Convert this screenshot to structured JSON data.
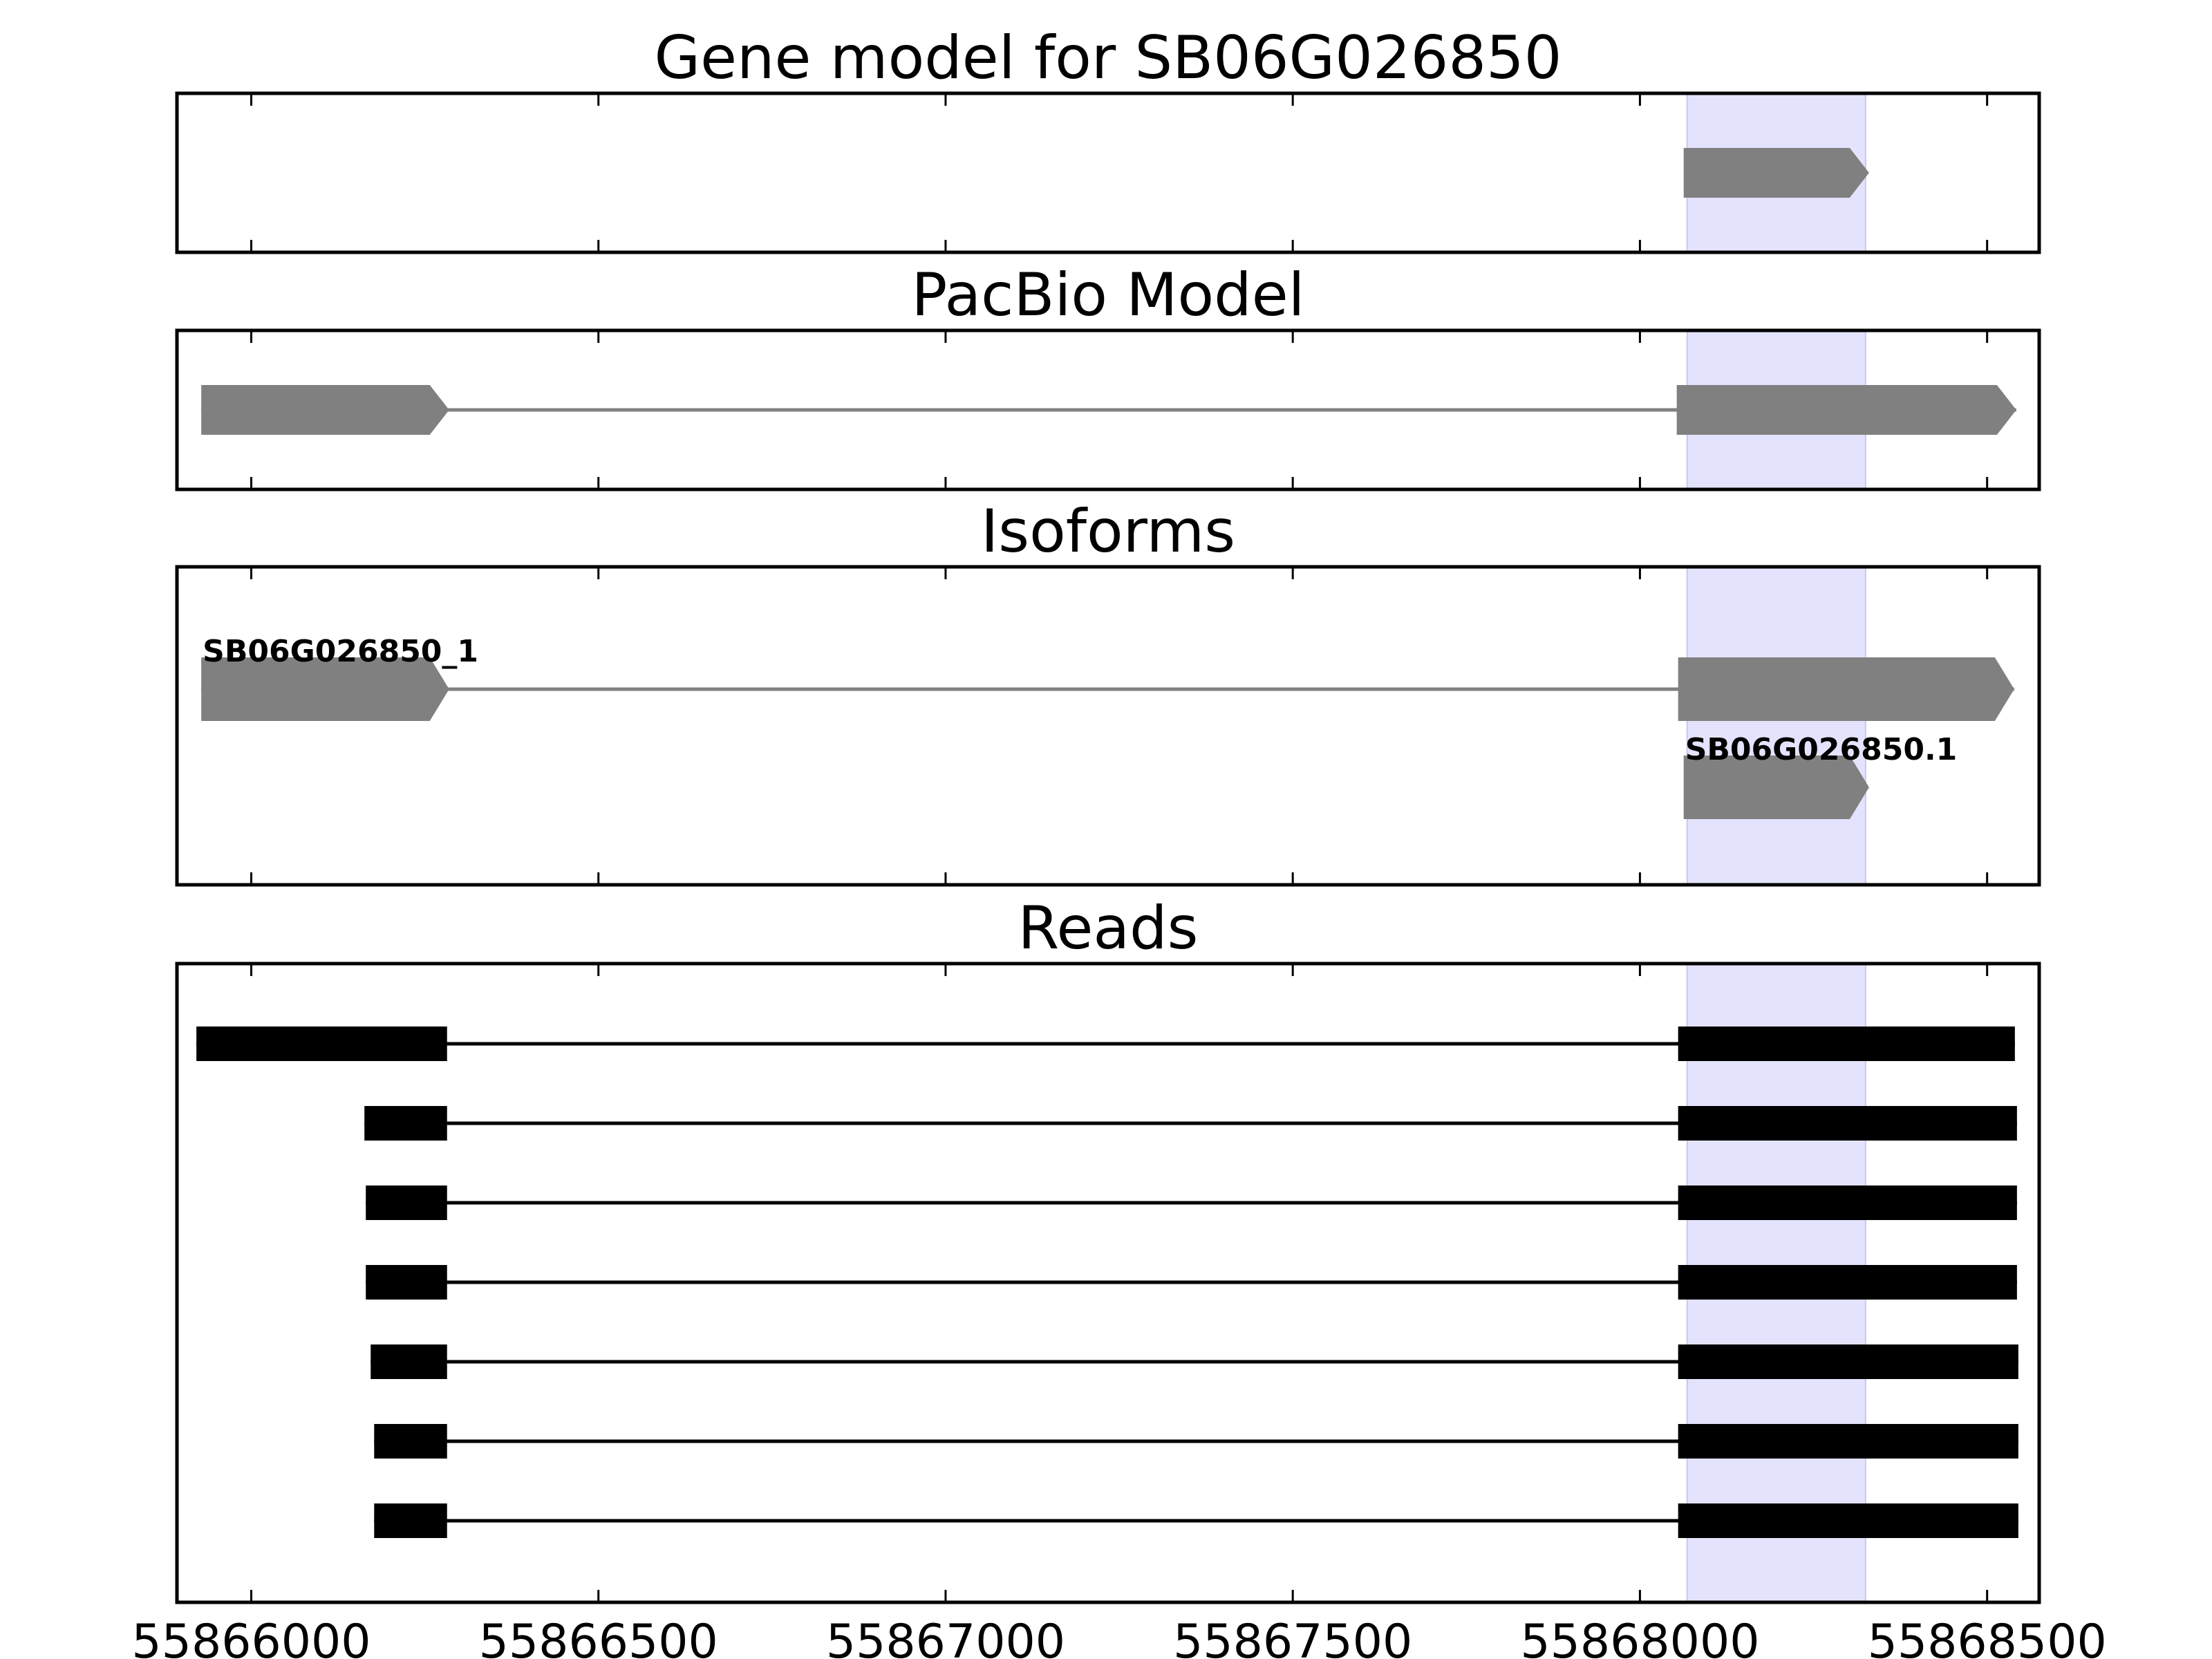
{
  "chart_data": {
    "type": "gene-track",
    "x_axis": {
      "xlim": [
        55865893,
        55868575
      ],
      "ticks": [
        55866000,
        55866500,
        55867000,
        55867500,
        55868000,
        55868500
      ],
      "tick_labels": [
        "55866000",
        "55866500",
        "55867000",
        "55867500",
        "55868000",
        "55868500"
      ]
    },
    "highlight": {
      "start": 55868068,
      "end": 55868325,
      "color": "#e3e3fd"
    },
    "colors": {
      "model": "#808080",
      "reads": "#000000",
      "frame": "#000000"
    },
    "panels": [
      {
        "id": "gene-model",
        "title": "Gene model for SB06G026850",
        "rows": 1,
        "transcripts": [
          {
            "row": 0,
            "label": "",
            "strand": "+",
            "exons": [
              [
                55868063,
                55868330
              ]
            ]
          }
        ]
      },
      {
        "id": "pacbio-model",
        "title": "PacBio Model",
        "rows": 1,
        "transcripts": [
          {
            "row": 0,
            "label": "",
            "strand": "+",
            "exons": [
              [
                55865928,
                55866285
              ],
              [
                55868053,
                55868542
              ]
            ]
          }
        ]
      },
      {
        "id": "isoforms",
        "title": "Isoforms",
        "rows": 2,
        "transcripts": [
          {
            "row": 0,
            "label": "SB06G026850_1",
            "strand": "+",
            "exons": [
              [
                55865928,
                55866285
              ],
              [
                55868055,
                55868539
              ]
            ]
          },
          {
            "row": 1,
            "label": "SB06G026850.1",
            "strand": "+",
            "exons": [
              [
                55868063,
                55868330
              ]
            ]
          }
        ]
      },
      {
        "id": "reads",
        "title": "Reads",
        "rows": 7,
        "reads": [
          {
            "row": 0,
            "exons": [
              [
                55865921,
                55866282
              ],
              [
                55868055,
                55868540
              ]
            ]
          },
          {
            "row": 1,
            "exons": [
              [
                55866163,
                55866282
              ],
              [
                55868055,
                55868543
              ]
            ]
          },
          {
            "row": 2,
            "exons": [
              [
                55866165,
                55866282
              ],
              [
                55868055,
                55868543
              ]
            ]
          },
          {
            "row": 3,
            "exons": [
              [
                55866165,
                55866282
              ],
              [
                55868055,
                55868543
              ]
            ]
          },
          {
            "row": 4,
            "exons": [
              [
                55866172,
                55866282
              ],
              [
                55868055,
                55868545
              ]
            ]
          },
          {
            "row": 5,
            "exons": [
              [
                55866177,
                55866282
              ],
              [
                55868055,
                55868545
              ]
            ]
          },
          {
            "row": 6,
            "exons": [
              [
                55866177,
                55866282
              ],
              [
                55868055,
                55868545
              ]
            ]
          }
        ]
      }
    ]
  }
}
